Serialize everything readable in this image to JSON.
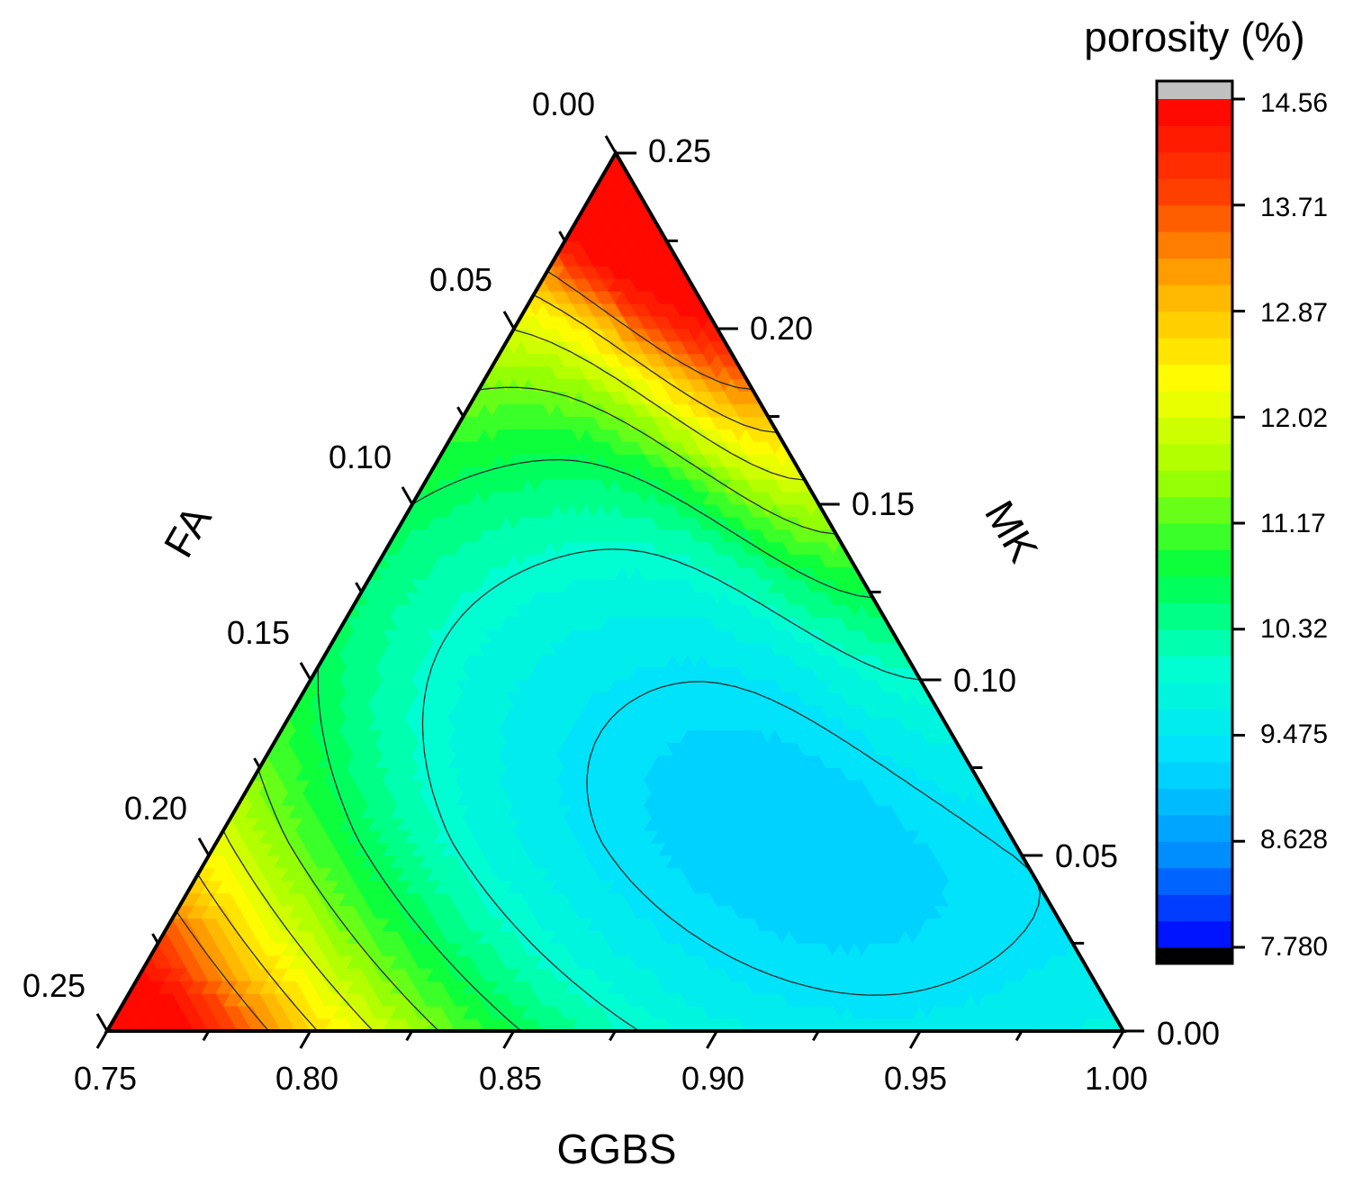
{
  "chart_data": {
    "type": "ternary-contour",
    "title": "",
    "axes": {
      "bottom": {
        "label": "GGBS",
        "ticks": [
          "0.75",
          "0.80",
          "0.85",
          "0.90",
          "0.95",
          "1.00"
        ],
        "range": [
          0.75,
          1.0
        ]
      },
      "left": {
        "label": "FA",
        "ticks": [
          "0.00",
          "0.05",
          "0.10",
          "0.15",
          "0.20",
          "0.25"
        ],
        "range": [
          0.0,
          0.25
        ]
      },
      "right": {
        "label": "MK",
        "ticks": [
          "0.25",
          "0.20",
          "0.15",
          "0.10",
          "0.05",
          "0.00"
        ],
        "range": [
          0.0,
          0.25
        ]
      }
    },
    "colorbar": {
      "title": "porosity (%)",
      "ticks": [
        "14.56",
        "13.71",
        "12.87",
        "12.02",
        "11.17",
        "10.32",
        "9.475",
        "8.628",
        "7.780"
      ],
      "min": 7.78,
      "max": 14.56,
      "levels": 32,
      "over_color": "#c0c0c0",
      "under_color": "#000000",
      "colormap": [
        "#0000ff",
        "#0090ff",
        "#00e0ff",
        "#00ffd0",
        "#00ff40",
        "#a0ff00",
        "#ffff00",
        "#ffb000",
        "#ff4000",
        "#ff0000"
      ]
    },
    "contour_levels": [
      13.3,
      12.65,
      12.0,
      11.35,
      10.7,
      10.05,
      9.4,
      9.1
    ],
    "observed_range": {
      "min": 9.1,
      "max": 14.4,
      "min_location": {
        "GGBS": 0.9,
        "FA": 0.045,
        "MK": 0.055
      }
    }
  }
}
